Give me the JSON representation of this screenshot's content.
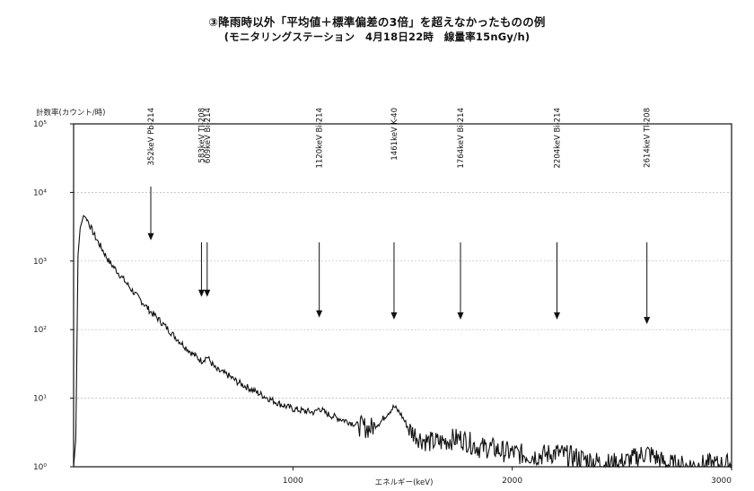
{
  "page": {
    "title_line1": "③降雨時以外「平均値＋標準偏差の3倍」を超えなかったものの例",
    "title_line2": "(モニタリングステーション　4月18日22時　線量率15nGy/h)"
  },
  "chart_data": {
    "type": "line",
    "title": "③降雨時以外「平均値＋標準偏差の3倍」を超えなかったものの例",
    "subtitle": "(モニタリングステーション　4月18日22時　線量率15nGy/h)",
    "xlabel": "エネルギー(keV)",
    "ylabel": "計数率(カウント/時)",
    "xlim": [
      0,
      3000
    ],
    "ylim": [
      1,
      100000
    ],
    "yscale": "log",
    "x_ticks": [
      1000,
      2000,
      3000
    ],
    "x_tick_labels": [
      "1000",
      "2000",
      "3000"
    ],
    "y_ticks": [
      1,
      10,
      100,
      1000,
      10000,
      100000
    ],
    "y_tick_labels": [
      "10⁰",
      "10¹",
      "10²",
      "10³",
      "10⁴",
      "10⁵"
    ],
    "grid": "horizontal",
    "series": [
      {
        "color": "#111111",
        "x": [
          0,
          10,
          20,
          30,
          45,
          60,
          80,
          100,
          130,
          160,
          200,
          240,
          280,
          330,
          352,
          380,
          420,
          460,
          500,
          540,
          583,
          609,
          650,
          700,
          750,
          800,
          850,
          900,
          950,
          1000,
          1050,
          1100,
          1120,
          1150,
          1200,
          1250,
          1300,
          1350,
          1400,
          1430,
          1461,
          1490,
          1530,
          1580,
          1620,
          1680,
          1720,
          1764,
          1800,
          1850,
          1900,
          1950,
          2000,
          2050,
          2100,
          2150,
          2204,
          2250,
          2300,
          2350,
          2400,
          2450,
          2500,
          2550,
          2580,
          2614,
          2650,
          2700,
          2750,
          2800,
          2850,
          2900,
          2950,
          3000
        ],
        "y": [
          1,
          2.5,
          1200,
          3000,
          4600,
          4200,
          3000,
          2200,
          1500,
          1000,
          700,
          480,
          330,
          220,
          180,
          150,
          110,
          80,
          60,
          45,
          35,
          40,
          26,
          22,
          17,
          14,
          11.5,
          9.5,
          8,
          7,
          6.5,
          6.2,
          7.2,
          6,
          5.2,
          4.6,
          4,
          3.6,
          4.5,
          6,
          7.5,
          6,
          3.5,
          2.6,
          2.3,
          2.3,
          2.5,
          2.6,
          2.3,
          1.9,
          1.9,
          1.7,
          1.6,
          1.5,
          1.45,
          1.5,
          1.6,
          1.45,
          1.35,
          1.25,
          1.15,
          1.1,
          1.15,
          1.3,
          1.45,
          1.6,
          1.4,
          1.1,
          1.05,
          1.02,
          1.05,
          1.08,
          1.05,
          1.1
        ]
      }
    ],
    "annotations": [
      {
        "x": 352,
        "y": 2000,
        "text": "352keV Pb-214"
      },
      {
        "x": 583,
        "y": 300,
        "text": "583keV Tl-208"
      },
      {
        "x": 609,
        "y": 300,
        "text": "609keV Bi-214"
      },
      {
        "x": 1120,
        "y": 150,
        "text": "1120keV Bi-214"
      },
      {
        "x": 1461,
        "y": 140,
        "text": "1461keV K-40"
      },
      {
        "x": 1764,
        "y": 140,
        "text": "1764keV Bi-214"
      },
      {
        "x": 2204,
        "y": 140,
        "text": "2204keV Bi-214"
      },
      {
        "x": 2614,
        "y": 120,
        "text": "2614keV Tl-208"
      }
    ]
  }
}
